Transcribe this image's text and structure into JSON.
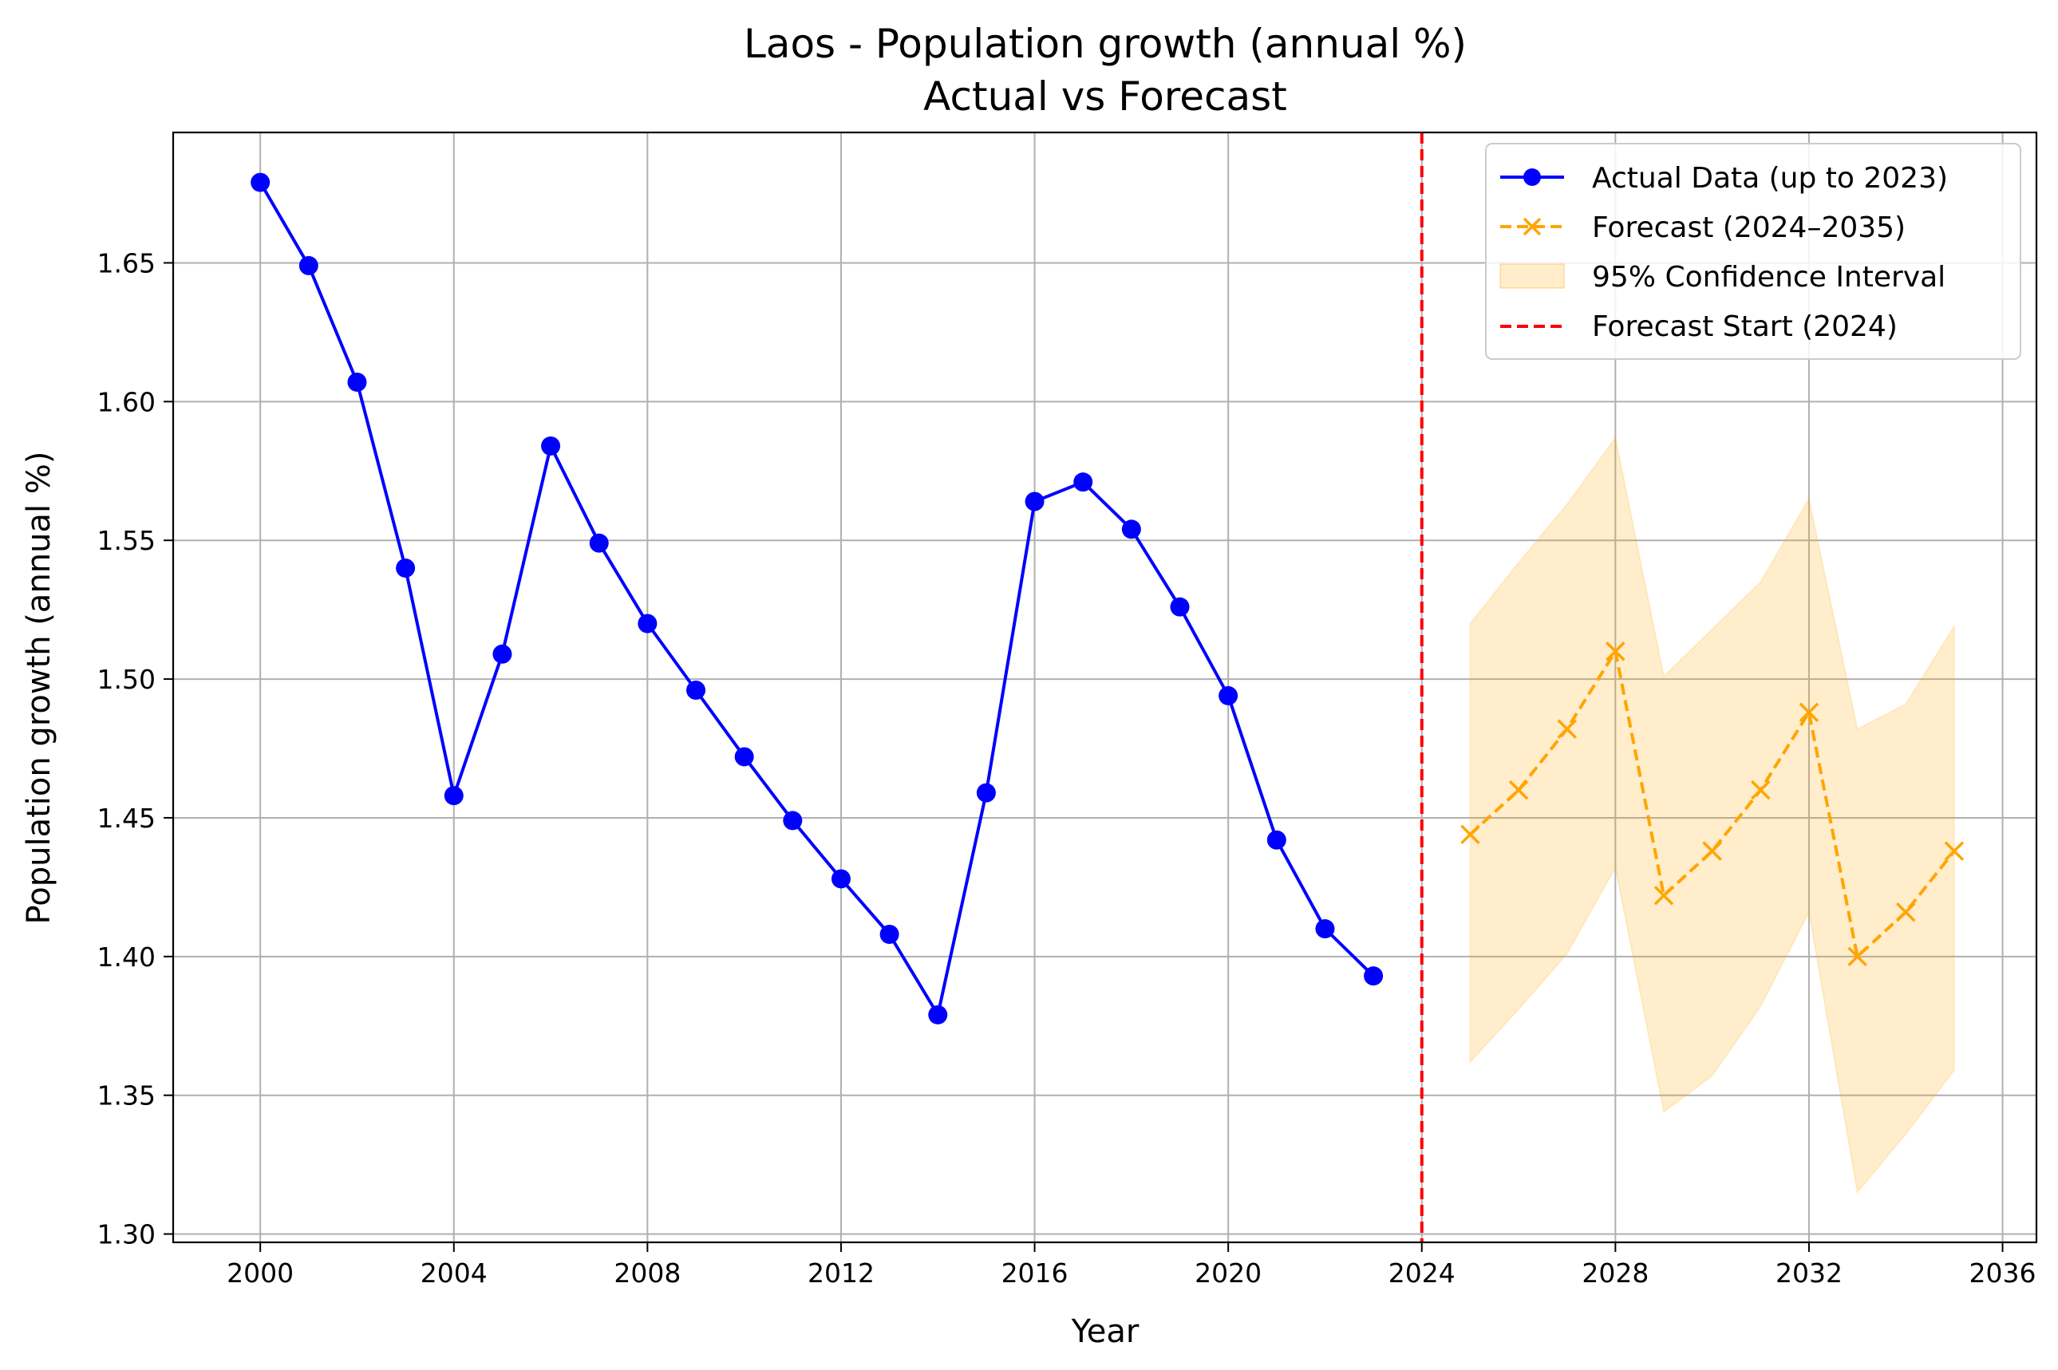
{
  "chart_data": {
    "type": "line",
    "title": "Laos - Population growth (annual %)",
    "subtitle": "Actual vs Forecast",
    "xlabel": "Year",
    "ylabel": "Population growth (annual %)",
    "xlim": [
      1998.2,
      2036.7
    ],
    "ylim": [
      1.297,
      1.697
    ],
    "x_ticks": [
      2000,
      2004,
      2008,
      2012,
      2016,
      2020,
      2024,
      2028,
      2032,
      2036
    ],
    "x_tick_labels": [
      "2000",
      "2004",
      "2008",
      "2012",
      "2016",
      "2020",
      "2024",
      "2028",
      "2032",
      "2036"
    ],
    "y_ticks": [
      1.3,
      1.35,
      1.4,
      1.45,
      1.5,
      1.55,
      1.6,
      1.65
    ],
    "y_tick_labels": [
      "1.30",
      "1.35",
      "1.40",
      "1.45",
      "1.50",
      "1.55",
      "1.60",
      "1.65"
    ],
    "grid": true,
    "legend_position": "top-right",
    "series": [
      {
        "name": "Actual Data (up to 2023)",
        "style": "solid line with circle markers",
        "color": "#0000ff",
        "x": [
          2000,
          2001,
          2002,
          2003,
          2004,
          2005,
          2006,
          2007,
          2008,
          2009,
          2010,
          2011,
          2012,
          2013,
          2014,
          2015,
          2016,
          2017,
          2018,
          2019,
          2020,
          2021,
          2022,
          2023
        ],
        "values": [
          1.679,
          1.649,
          1.607,
          1.54,
          1.458,
          1.509,
          1.584,
          1.549,
          1.52,
          1.496,
          1.472,
          1.449,
          1.428,
          1.408,
          1.379,
          1.459,
          1.564,
          1.571,
          1.554,
          1.526,
          1.494,
          1.442,
          1.41,
          1.393
        ]
      },
      {
        "name": "Forecast (2024–2035)",
        "style": "dashed line with x markers",
        "color": "#ffa500",
        "x": [
          2025,
          2026,
          2027,
          2028,
          2029,
          2030,
          2031,
          2032,
          2033,
          2034,
          2035
        ],
        "values": [
          1.444,
          1.46,
          1.482,
          1.51,
          1.422,
          1.438,
          1.46,
          1.488,
          1.4,
          1.416,
          1.438
        ]
      }
    ],
    "confidence_interval": {
      "name": "95% Confidence Interval",
      "color": "#ffa500",
      "x": [
        2025,
        2026,
        2027,
        2028,
        2029,
        2030,
        2031,
        2032,
        2033,
        2034,
        2035
      ],
      "lower": [
        1.362,
        1.381,
        1.401,
        1.432,
        1.344,
        1.357,
        1.382,
        1.416,
        1.315,
        1.336,
        1.359
      ],
      "upper": [
        1.52,
        1.542,
        1.563,
        1.587,
        1.501,
        1.518,
        1.535,
        1.565,
        1.482,
        1.491,
        1.519
      ]
    },
    "vertical_line": {
      "name": "Forecast Start (2024)",
      "x": 2024,
      "color": "#ff0000"
    }
  }
}
